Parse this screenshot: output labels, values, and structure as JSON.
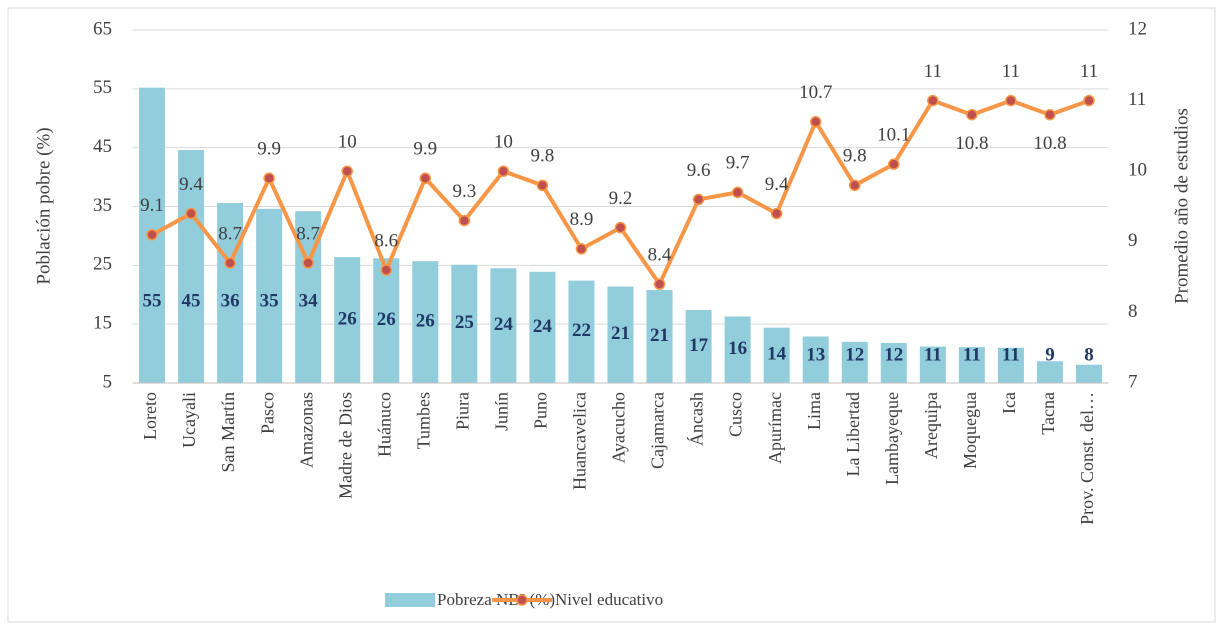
{
  "chart_data": {
    "type": "bar_line",
    "categories": [
      "Loreto",
      "Ucayali",
      "San Martín",
      "Pasco",
      "Amazonas",
      "Madre de Dios",
      "Huánuco",
      "Tumbes",
      "Piura",
      "Junín",
      "Puno",
      "Huancavelica",
      "Ayacucho",
      "Cajamarca",
      "Áncash",
      "Cusco",
      "Apurímac",
      "Lima",
      "La Libertad",
      "Lambayeque",
      "Arequipa",
      "Moquegua",
      "Ica",
      "Tacna",
      "Prov. Const. del…"
    ],
    "series": [
      {
        "name": "Pobreza NBI (%)",
        "type": "bar",
        "color": "#92cddc",
        "values": [
          55.2,
          44.6,
          35.6,
          34.6,
          34.2,
          26.4,
          26.2,
          25.7,
          25.1,
          24.5,
          23.9,
          22.4,
          21.4,
          20.8,
          17.4,
          16.3,
          14.4,
          12.9,
          12.0,
          11.8,
          11.2,
          11.1,
          11.0,
          8.7,
          8.1
        ],
        "value_labels": [
          "55",
          "45",
          "36",
          "35",
          "34",
          "26",
          "26",
          "26",
          "25",
          "24",
          "24",
          "22",
          "21",
          "21",
          "17",
          "16",
          "14",
          "13",
          "12",
          "12",
          "11",
          "11",
          "11",
          "9",
          "8"
        ]
      },
      {
        "name": "Nivel educativo",
        "type": "line",
        "axis": "y2",
        "color": "#f79646",
        "marker_color": "#c0504d",
        "values": [
          9.1,
          9.4,
          8.7,
          9.9,
          8.7,
          10,
          8.6,
          9.9,
          9.3,
          10,
          9.8,
          8.9,
          9.2,
          8.4,
          9.6,
          9.7,
          9.4,
          10.7,
          9.8,
          10.1,
          11,
          10.8,
          11,
          10.8,
          11
        ]
      }
    ],
    "ylabel": "Población  pobre (%)",
    "y2label": "Promedio año de estudios",
    "ylim": [
      5,
      65
    ],
    "yticks": [
      5,
      15,
      25,
      35,
      45,
      55,
      65
    ],
    "y2lim": [
      7,
      12
    ],
    "y2ticks": [
      7,
      8,
      9,
      10,
      11,
      12
    ],
    "grid": true,
    "legend": "bottom"
  }
}
